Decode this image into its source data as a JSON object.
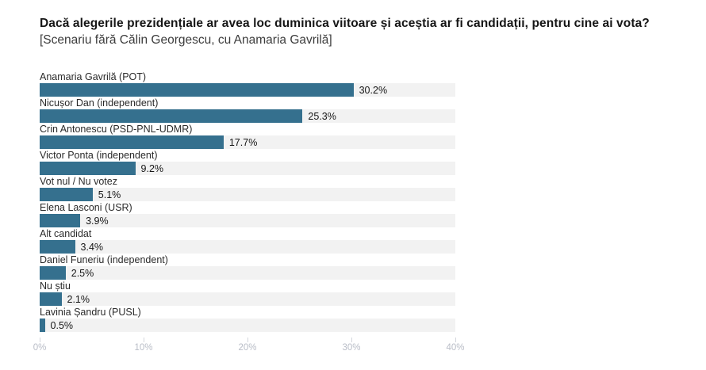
{
  "header": {
    "title": "Dacă alegerile prezidențiale ar avea loc duminica viitoare și aceștia ar fi candidații, pentru cine ai vota?",
    "subtitle": "[Scenariu fără Călin Georgescu, cu Anamaria Gavrilă]"
  },
  "colors": {
    "bar": "#35708E",
    "track": "#F2F2F2",
    "axis_label": "#B9BDC7",
    "tick_line": "#D3D6DC"
  },
  "chart_data": {
    "type": "bar",
    "orientation": "horizontal",
    "title": "Dacă alegerile prezidențiale ar avea loc duminica viitoare și aceștia ar fi candidații, pentru cine ai vota?",
    "subtitle": "[Scenariu fără Călin Georgescu, cu Anamaria Gavrilă]",
    "categories": [
      "Anamaria Gavrilă (POT)",
      "Nicușor Dan (independent)",
      "Crin Antonescu (PSD-PNL-UDMR)",
      "Victor Ponta (independent)",
      "Vot nul / Nu votez",
      "Elena Lasconi (USR)",
      "Alt candidat",
      "Daniel Funeriu (independent)",
      "Nu știu",
      "Lavinia Șandru (PUSL)"
    ],
    "values": [
      30.2,
      25.3,
      17.7,
      9.2,
      5.1,
      3.9,
      3.4,
      2.5,
      2.1,
      0.5
    ],
    "value_labels": [
      "30.2%",
      "25.3%",
      "17.7%",
      "9.2%",
      "5.1%",
      "3.9%",
      "3.4%",
      "2.5%",
      "2.1%",
      "0.5%"
    ],
    "xlim": [
      0,
      40
    ],
    "x_ticks": [
      "0%",
      "10%",
      "20%",
      "30%",
      "40%"
    ],
    "xlabel": "",
    "ylabel": "",
    "grid": false,
    "legend": false
  }
}
